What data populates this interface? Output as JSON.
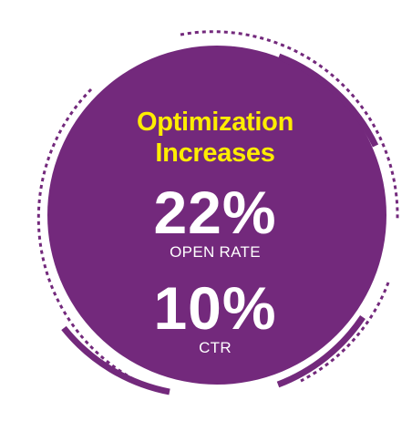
{
  "infographic": {
    "headline": {
      "line1": "Optimization",
      "line2": "Increases"
    },
    "stats": [
      {
        "value": "22%",
        "label": "OPEN RATE"
      },
      {
        "value": "10%",
        "label": "CTR"
      }
    ]
  },
  "colors": {
    "circle_fill": "#73297c",
    "ring": "#73297c",
    "headline": "#ffed00",
    "stat_text": "#ffffff",
    "background": "#ffffff"
  }
}
